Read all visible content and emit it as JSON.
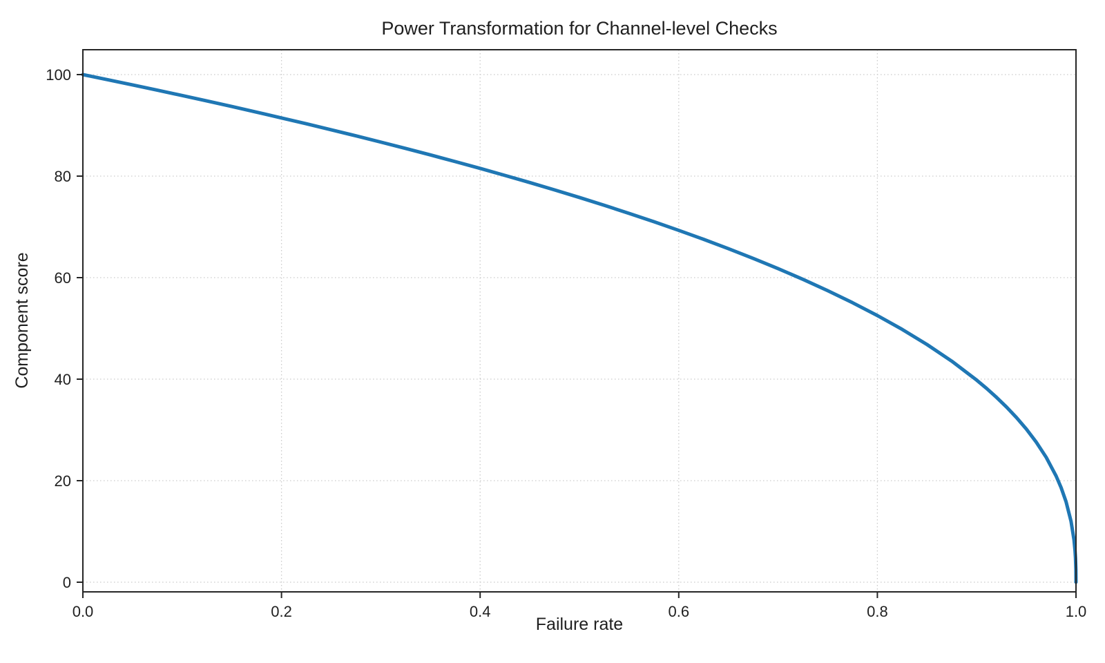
{
  "figure": {
    "background": "#ffffff"
  },
  "chart_data": {
    "type": "line",
    "title": "Power Transformation for Channel-level Checks",
    "xlabel": "Failure rate",
    "ylabel": "Component score",
    "xlim": [
      0.0,
      1.0
    ],
    "ylim": [
      0,
      100
    ],
    "grid": true,
    "grid_style": "dotted",
    "grid_color": "#c9c9c9",
    "spine_color": "#252525",
    "text_color": "#1f1f1f",
    "line_color": "#1f77b4",
    "line_width": 5,
    "legend": "none",
    "xticks": [
      0.0,
      0.2,
      0.4,
      0.6,
      0.8,
      1.0
    ],
    "xtick_labels": [
      "0.0",
      "0.2",
      "0.4",
      "0.6",
      "0.8",
      "1.0"
    ],
    "yticks": [
      0,
      20,
      40,
      60,
      80,
      100
    ],
    "ytick_labels": [
      "0",
      "20",
      "40",
      "60",
      "80",
      "100"
    ],
    "series": [
      {
        "name": "component-score-curve",
        "x": [
          0.0,
          0.025,
          0.05,
          0.075,
          0.1,
          0.125,
          0.15,
          0.175,
          0.2,
          0.225,
          0.25,
          0.275,
          0.3,
          0.325,
          0.35,
          0.375,
          0.4,
          0.425,
          0.45,
          0.475,
          0.5,
          0.525,
          0.55,
          0.575,
          0.6,
          0.625,
          0.65,
          0.675,
          0.7,
          0.725,
          0.75,
          0.775,
          0.8,
          0.825,
          0.85,
          0.875,
          0.9,
          0.91,
          0.92,
          0.93,
          0.94,
          0.95,
          0.96,
          0.97,
          0.98,
          0.985,
          0.99,
          0.995,
          0.998,
          0.999,
          0.9995,
          0.9999,
          1.0
        ],
        "y": [
          100.0,
          98.99,
          97.97,
          96.93,
          95.87,
          94.8,
          93.71,
          92.59,
          91.46,
          90.31,
          89.13,
          87.93,
          86.7,
          85.45,
          84.17,
          82.86,
          81.52,
          80.14,
          78.73,
          77.28,
          75.79,
          74.25,
          72.66,
          71.02,
          69.31,
          67.55,
          65.71,
          63.79,
          61.78,
          59.67,
          57.43,
          55.06,
          52.53,
          49.8,
          46.82,
          43.53,
          39.81,
          38.17,
          36.41,
          34.52,
          32.45,
          30.17,
          27.59,
          24.6,
          20.91,
          18.64,
          15.85,
          12.01,
          8.33,
          6.31,
          4.78,
          2.51,
          0.0
        ]
      }
    ]
  }
}
